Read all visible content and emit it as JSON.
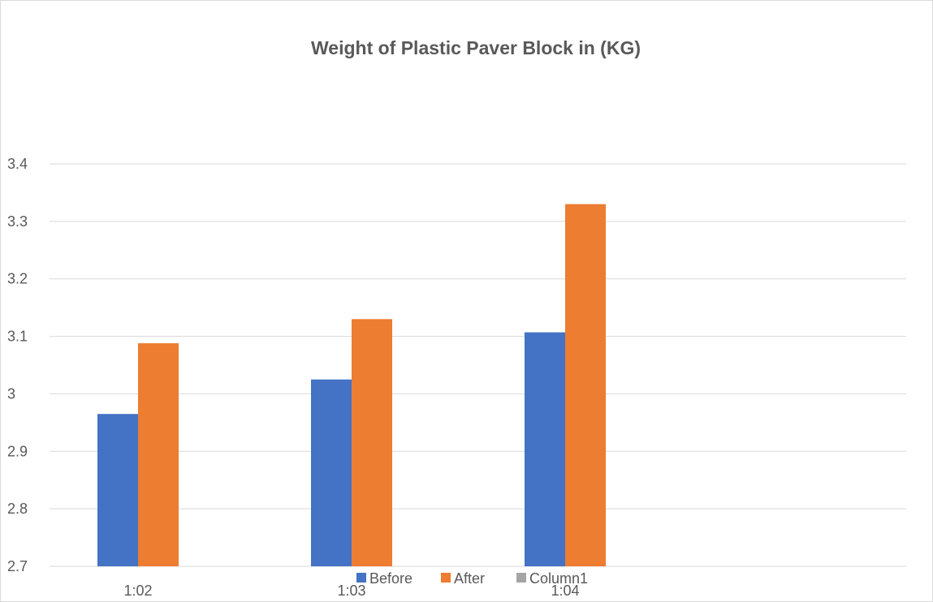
{
  "chart_data": {
    "type": "bar",
    "title": "Weight of Plastic Paver Block in (KG)",
    "xlabel": "",
    "ylabel": "",
    "categories": [
      "1:02",
      "1:03",
      "1:04"
    ],
    "series": [
      {
        "name": "Before",
        "values": [
          2.965,
          3.025,
          3.107
        ],
        "color": "#4472c4"
      },
      {
        "name": "After",
        "values": [
          3.088,
          3.13,
          3.33
        ],
        "color": "#ed7d31"
      },
      {
        "name": "Column1",
        "values": [
          null,
          null,
          null
        ],
        "color": "#a5a5a5"
      }
    ],
    "ylim": [
      2.7,
      3.4
    ],
    "yticks": [
      "2.7",
      "2.8",
      "2.9",
      "3",
      "3.1",
      "3.2",
      "3.3",
      "3.4"
    ],
    "grid": true,
    "legend": "bottom",
    "gridline_color": "#d9d9d9",
    "text_color": "#595959"
  }
}
